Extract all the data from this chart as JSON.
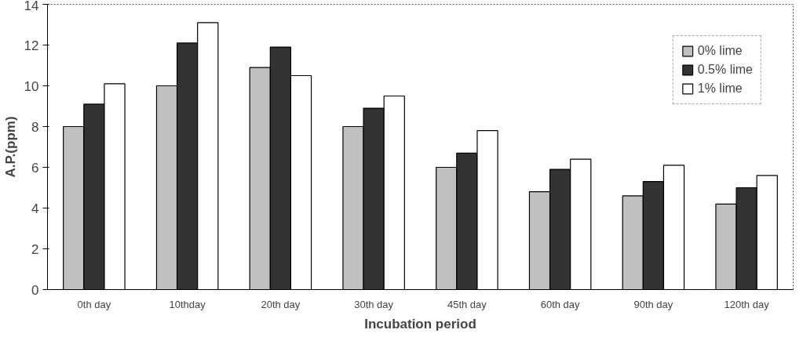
{
  "chart_data": {
    "type": "bar",
    "xlabel": "Incubation period",
    "ylabel": "A.P.(ppm)",
    "categories": [
      "0th day",
      "10thday",
      "20th day",
      "30th day",
      "45th day",
      "60th day",
      "90th day",
      "120th day"
    ],
    "series": [
      {
        "name": "0% lime",
        "color": "#c0c0c0",
        "values": [
          8.0,
          10.0,
          10.9,
          8.0,
          6.0,
          4.8,
          4.6,
          4.2
        ]
      },
      {
        "name": "0.5% lime",
        "color": "#333333",
        "values": [
          9.1,
          12.1,
          11.9,
          8.9,
          6.7,
          5.9,
          5.3,
          5.0
        ]
      },
      {
        "name": "1% lime",
        "color": "#ffffff",
        "values": [
          10.1,
          13.1,
          10.5,
          9.5,
          7.8,
          6.4,
          6.1,
          5.6
        ]
      }
    ],
    "ylim": [
      0,
      14
    ],
    "yticks": [
      0,
      2,
      4,
      6,
      8,
      10,
      12,
      14
    ],
    "grid": false,
    "legend": "top right"
  }
}
